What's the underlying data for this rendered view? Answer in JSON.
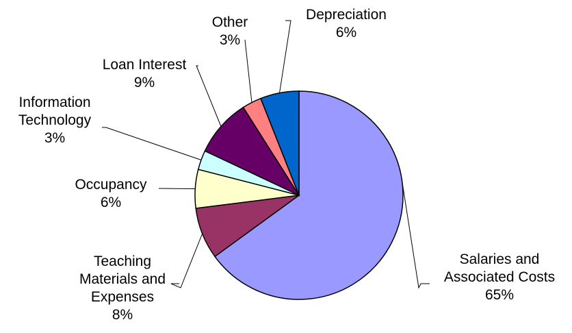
{
  "chart_data": {
    "type": "pie",
    "title": "",
    "slices": [
      {
        "label": "Salaries and Associated Costs",
        "lines": [
          "Salaries and",
          "Associated Costs"
        ],
        "value": 65,
        "pct_label": "65%",
        "color": "#9999ff"
      },
      {
        "label": "Teaching Materials and Expenses",
        "lines": [
          "Teaching",
          "Materials and",
          "Expenses"
        ],
        "value": 8,
        "pct_label": "8%",
        "color": "#993366"
      },
      {
        "label": "Occupancy",
        "lines": [
          "Occupancy"
        ],
        "value": 6,
        "pct_label": "6%",
        "color": "#ffffcc"
      },
      {
        "label": "Information Technology",
        "lines": [
          "Information",
          "Technology"
        ],
        "value": 3,
        "pct_label": "3%",
        "color": "#ccffff"
      },
      {
        "label": "Loan Interest",
        "lines": [
          "Loan Interest"
        ],
        "value": 9,
        "pct_label": "9%",
        "color": "#660066"
      },
      {
        "label": "Other",
        "lines": [
          "Other"
        ],
        "value": 3,
        "pct_label": "3%",
        "color": "#ff8080"
      },
      {
        "label": "Depreciation",
        "lines": [
          "Depreciation"
        ],
        "value": 6,
        "pct_label": "6%",
        "color": "#0066cc"
      }
    ],
    "start_angle_deg": 0,
    "direction": "clockwise",
    "legend": "none",
    "labels": "outside-with-leader-lines"
  }
}
